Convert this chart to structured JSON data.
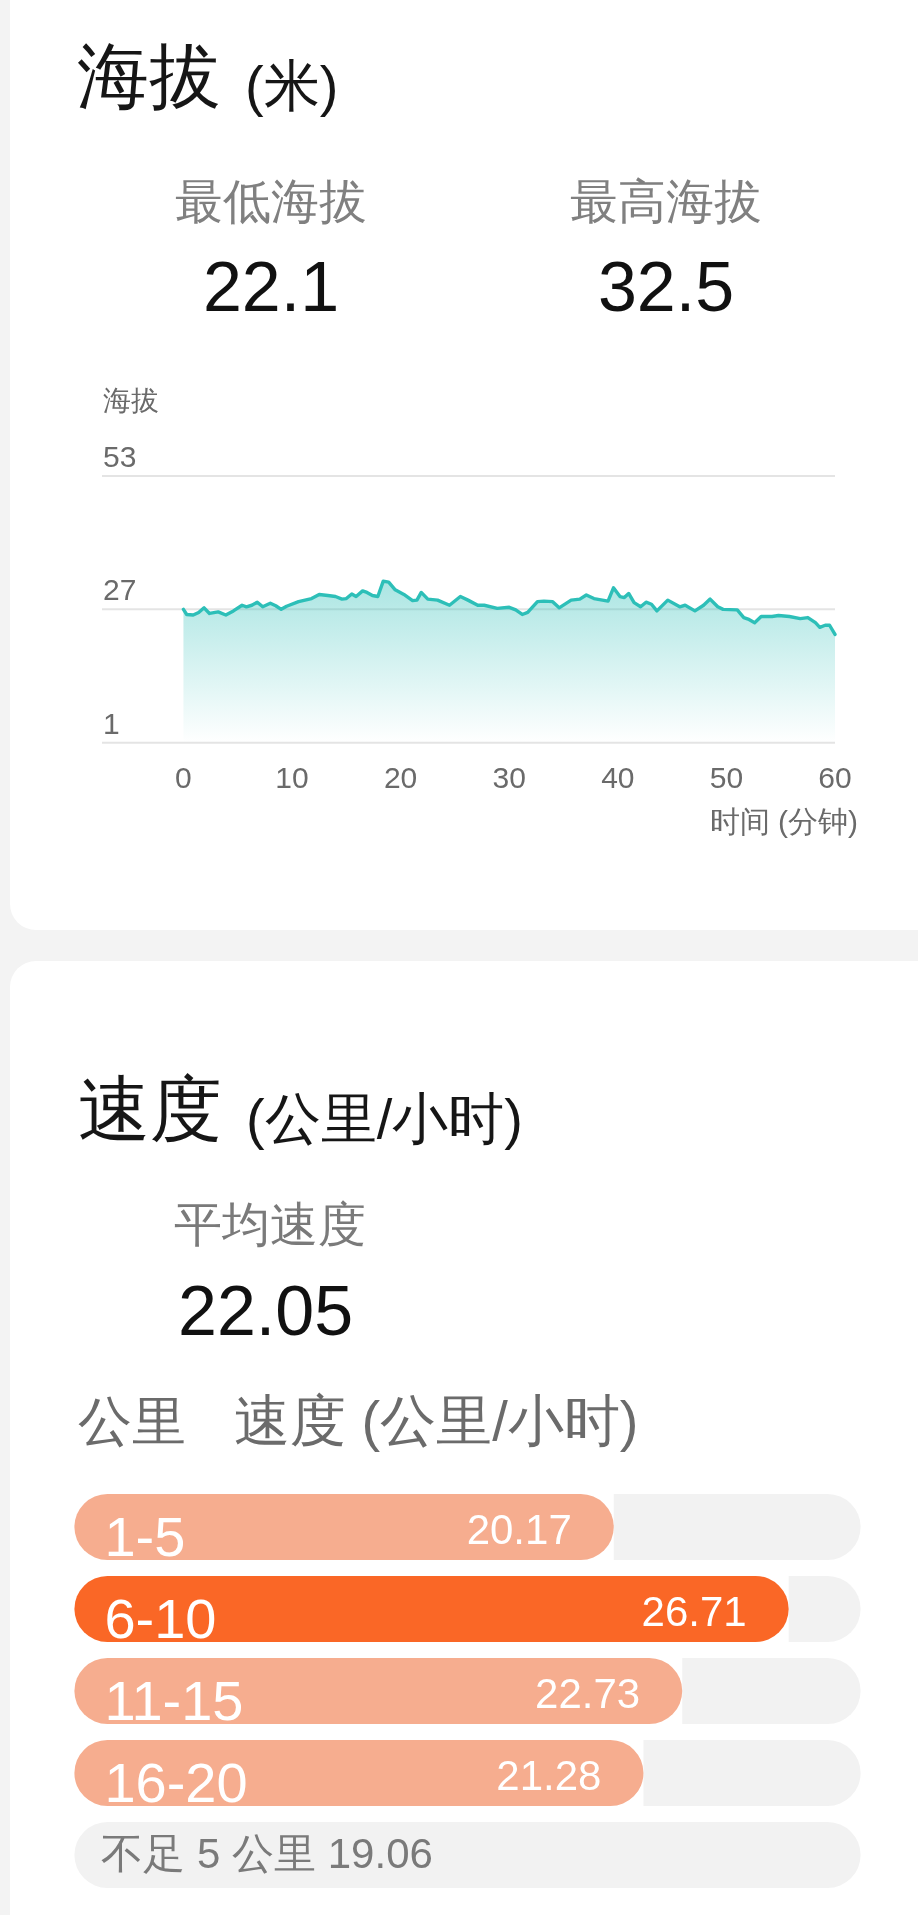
{
  "chart_data": [
    {
      "type": "area",
      "title": "海拔",
      "subtitle": "(米)",
      "ylabel": "海拔",
      "xlabel": "时间 (分钟)",
      "annotations": [
        "最低海拔",
        "22.1",
        "最高海拔",
        "32.5"
      ],
      "color": "#2dbfb8",
      "x": [
        0.0,
        0.3,
        0.9,
        1.4,
        1.9,
        2.4,
        3.2,
        3.9,
        4.6,
        5.4,
        5.8,
        6.3,
        6.8,
        7.3,
        8.0,
        8.5,
        9.0,
        9.5,
        10.6,
        11.8,
        12.5,
        13.3,
        14.0,
        14.6,
        15.0,
        15.5,
        15.9,
        16.5,
        16.9,
        17.4,
        17.9,
        18.4,
        18.9,
        19.5,
        20.3,
        21.1,
        21.5,
        21.9,
        22.5,
        23.4,
        24.5,
        25.5,
        26.2,
        27.1,
        27.7,
        28.9,
        30.0,
        30.6,
        31.2,
        31.7,
        32.6,
        33.2,
        34.0,
        34.6,
        35.7,
        36.5,
        37.1,
        37.8,
        39.1,
        39.6,
        40.2,
        40.6,
        41.0,
        41.5,
        42.1,
        42.6,
        43.1,
        43.6,
        44.6,
        45.7,
        46.2,
        47.1,
        47.9,
        48.5,
        49.2,
        49.7,
        51.0,
        51.6,
        52.0,
        52.6,
        53.2,
        54.2,
        54.8,
        55.8,
        56.8,
        57.5,
        58.2,
        58.6,
        59.1,
        59.5,
        60.0
      ],
      "values": [
        27.0,
        26.0,
        25.9,
        26.4,
        27.3,
        26.2,
        26.5,
        25.9,
        26.7,
        27.8,
        27.5,
        27.8,
        28.4,
        27.5,
        28.2,
        27.7,
        27.0,
        27.6,
        28.5,
        29.1,
        29.9,
        29.7,
        29.5,
        29.0,
        29.1,
        30.0,
        29.5,
        30.6,
        30.3,
        29.7,
        29.5,
        32.5,
        32.3,
        30.8,
        29.9,
        28.7,
        28.8,
        30.3,
        29.0,
        28.8,
        27.8,
        29.5,
        28.8,
        27.8,
        27.8,
        27.2,
        27.4,
        26.9,
        26.0,
        26.4,
        28.5,
        28.6,
        28.5,
        27.3,
        28.8,
        29.0,
        29.8,
        29.1,
        28.6,
        31.2,
        29.5,
        29.3,
        30.1,
        28.3,
        27.5,
        28.4,
        28.0,
        26.7,
        28.8,
        27.5,
        27.8,
        26.7,
        27.8,
        29.0,
        27.5,
        27.0,
        26.9,
        25.4,
        25.1,
        24.4,
        25.6,
        25.6,
        25.8,
        25.6,
        25.2,
        25.4,
        24.4,
        23.5,
        23.9,
        23.9,
        22.1
      ],
      "xlim": [
        -7.5,
        60
      ],
      "ylim": [
        1,
        53
      ],
      "xticks": [
        0,
        10,
        20,
        30,
        40,
        50,
        60
      ],
      "yticks": [
        1,
        27,
        53
      ],
      "grid": "y"
    },
    {
      "type": "bar",
      "orientation": "horizontal",
      "stacked": true,
      "title": "速度",
      "subtitle": "(公里/小时)",
      "ylabel": "公里",
      "xlabel": "速度 (公里/小时)",
      "annotations": [
        "平均速度",
        "22.05",
        "不足 5 公里 19.06"
      ],
      "categories": [
        "1-5",
        "6-10",
        "11-15",
        "16-20",
        null
      ],
      "tick_labels": "y",
      "series": [
        {
          "colors": [
            "#f6ad8f",
            "#fa6726",
            "#f6ad8f",
            "#f6ad8f",
            null
          ],
          "values": [
            20.17,
            26.71,
            22.73,
            21.28,
            null
          ],
          "value_labels": [
            "20.17",
            "26.71",
            "22.73",
            "21.28",
            null
          ]
        },
        {
          "color": "#f2f2f2",
          "values": [
            9.23,
            2.69,
            6.67,
            8.12,
            29.4
          ]
        }
      ]
    }
  ]
}
